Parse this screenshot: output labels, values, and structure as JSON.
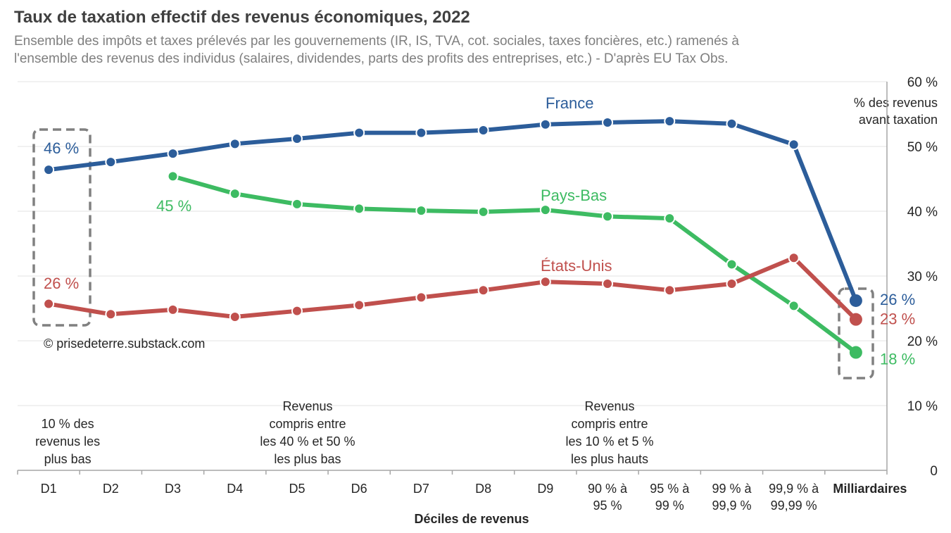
{
  "chart_data": {
    "type": "line",
    "title": "Taux de taxation effectif des revenus économiques, 2022",
    "subtitle": [
      "Ensemble des impôts et taxes prélevés par les gouvernements (IR, IS, TVA, cot. sociales, taxes foncières, etc.) ramenés à",
      "l'ensemble des revenus des individus (salaires, dividendes, parts des profits des entreprises, etc.) - D'après EU Tax Obs."
    ],
    "xlabel": "Déciles de revenus",
    "ylabel": [
      "% des revenus",
      "avant taxation"
    ],
    "ylim": [
      0,
      60
    ],
    "yticks": [
      0,
      10,
      20,
      30,
      40,
      50,
      60
    ],
    "ytick_labels": [
      "0",
      "10 %",
      "20 %",
      "30 %",
      "40 %",
      "50 %",
      "60 %"
    ],
    "grid": true,
    "categories": [
      [
        "D1"
      ],
      [
        "D2"
      ],
      [
        "D3"
      ],
      [
        "D4"
      ],
      [
        "D5"
      ],
      [
        "D6"
      ],
      [
        "D7"
      ],
      [
        "D8"
      ],
      [
        "D9"
      ],
      [
        "90 % à",
        "95 %"
      ],
      [
        "95 % à",
        "99 %"
      ],
      [
        "99 % à",
        "99,9 %"
      ],
      [
        "99,9 % à",
        "99,99 %"
      ],
      [
        "Milliardaires"
      ]
    ],
    "series": [
      {
        "name": "France",
        "color": "#2c5d9a",
        "values": [
          46.4,
          47.6,
          48.9,
          50.4,
          51.2,
          52.1,
          52.1,
          52.5,
          53.4,
          53.7,
          53.9,
          53.5,
          50.3,
          26.2
        ],
        "start_label": "46 %",
        "end_label": "26 %"
      },
      {
        "name": "Pays-Bas",
        "color": "#3dbb62",
        "values": [
          null,
          null,
          45.4,
          42.7,
          41.1,
          40.4,
          40.1,
          39.9,
          40.2,
          39.2,
          38.9,
          31.8,
          25.4,
          18.2
        ],
        "start_label": "45 %",
        "end_label": "18 %"
      },
      {
        "name": "États-Unis",
        "color": "#c0504d",
        "values": [
          25.7,
          24.1,
          24.8,
          23.7,
          24.6,
          25.5,
          26.7,
          27.8,
          29.1,
          28.8,
          27.8,
          28.8,
          32.8,
          23.3
        ],
        "start_label": "26 %",
        "end_label": "23 %"
      }
    ],
    "annotations": [
      {
        "text": [
          "10 % des",
          "revenus les",
          "plus bas"
        ],
        "category": 0
      },
      {
        "text": [
          "Revenus",
          "compris entre",
          "les 40 % et 50 %",
          "les plus bas"
        ],
        "category": 4
      },
      {
        "text": [
          "Revenus",
          "compris entre",
          "les 10 % et 5 %",
          "les plus hauts"
        ],
        "category": 9
      }
    ],
    "credit": "© prisedeterre.substack.com"
  }
}
